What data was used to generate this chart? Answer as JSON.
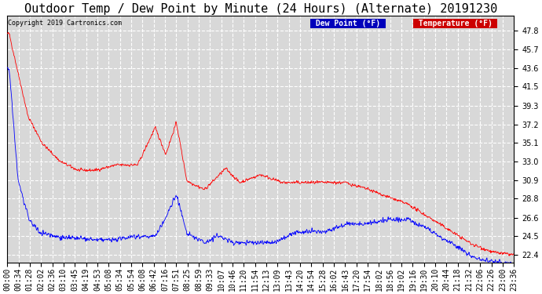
{
  "title": "Outdoor Temp / Dew Point by Minute (24 Hours) (Alternate) 20191230",
  "copyright": "Copyright 2019 Cartronics.com",
  "legend_labels": [
    "Dew Point (°F)",
    "Temperature (°F)"
  ],
  "legend_bg_colors": [
    "#0000bb",
    "#cc0000"
  ],
  "ylim": [
    21.5,
    49.5
  ],
  "yticks": [
    22.4,
    24.5,
    26.6,
    28.8,
    30.9,
    33.0,
    35.1,
    37.2,
    39.3,
    41.5,
    43.6,
    45.7,
    47.8
  ],
  "bg_color": "#d8d8d8",
  "grid_color": "#ffffff",
  "title_fontsize": 11,
  "tick_fontsize": 7,
  "num_minutes": 1440,
  "x_tick_labels": [
    "00:00",
    "00:34",
    "01:28",
    "02:02",
    "02:36",
    "03:10",
    "03:45",
    "04:19",
    "04:53",
    "05:08",
    "05:34",
    "05:54",
    "06:08",
    "06:42",
    "07:16",
    "07:51",
    "08:25",
    "08:59",
    "09:33",
    "10:07",
    "10:46",
    "11:20",
    "11:54",
    "12:13",
    "13:09",
    "13:43",
    "14:20",
    "14:54",
    "15:28",
    "16:02",
    "16:43",
    "17:20",
    "17:54",
    "18:02",
    "18:56",
    "19:02",
    "19:16",
    "19:30",
    "20:10",
    "20:44",
    "21:18",
    "21:32",
    "22:06",
    "22:26",
    "23:00",
    "23:36"
  ]
}
